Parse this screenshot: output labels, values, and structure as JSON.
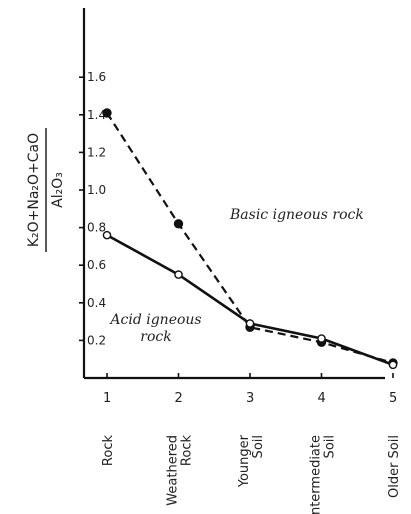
{
  "chart_data": {
    "type": "line",
    "ylabel_numerator": "K₂O+Na₂O+CaO",
    "ylabel_denominator": "Al₂O₃",
    "ylim": [
      0,
      1.6
    ],
    "y_ticks": [
      "0.2",
      "0.4",
      "0.6",
      "0.8",
      "1.0",
      "1.2",
      "1.4",
      "1.6"
    ],
    "x": [
      1,
      2,
      3,
      4,
      5
    ],
    "x_tick_labels": [
      "1",
      "2",
      "3",
      "4",
      "5"
    ],
    "categories": [
      [
        "Rock"
      ],
      [
        "Weathered",
        "Rock"
      ],
      [
        "Younger",
        "Soil"
      ],
      [
        "Intermediate",
        "Soil"
      ],
      [
        "Older Soil"
      ]
    ],
    "series": [
      {
        "name": "Basic igneous rock",
        "line_style": "dashed",
        "marker": "filled",
        "values": [
          1.41,
          0.82,
          0.27,
          0.19,
          0.08
        ]
      },
      {
        "name": "Acid igneous rock",
        "line_style": "solid",
        "marker": "open",
        "values": [
          0.76,
          0.55,
          0.29,
          0.21,
          0.07
        ]
      }
    ],
    "annotations": [
      {
        "lines": [
          "Basic igneous rock"
        ],
        "series": 0
      },
      {
        "lines": [
          "Acid igneous",
          "rock"
        ],
        "series": 1
      }
    ],
    "grid": false,
    "legend": "none"
  }
}
